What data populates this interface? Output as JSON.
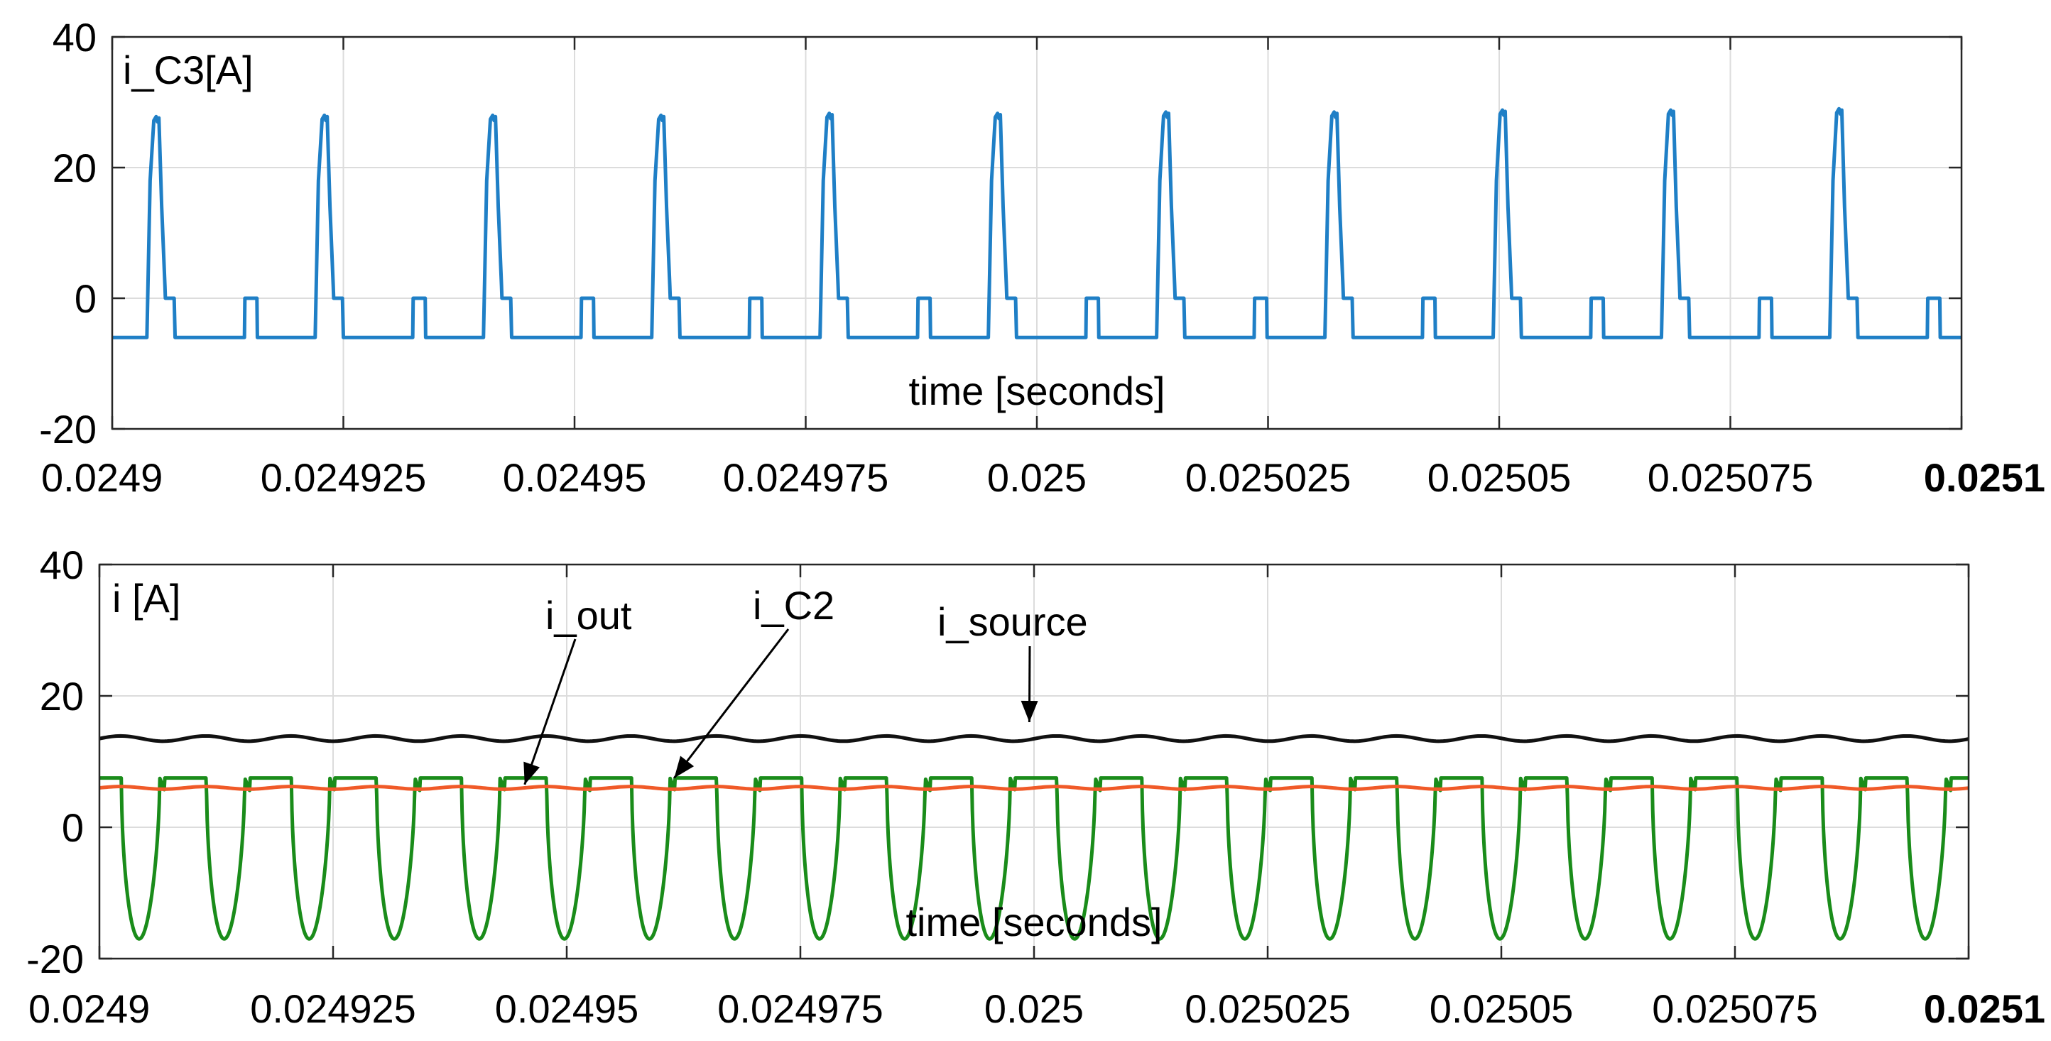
{
  "chart_data": [
    {
      "type": "line",
      "panel_label": "i_C3[A]",
      "xlabel": "time [seconds]",
      "xlim": [
        0.0249,
        0.0251
      ],
      "ylim": [
        -20,
        40
      ],
      "x_ticks": [
        "0.0249",
        "0.024925",
        "0.02495",
        "0.024975",
        "0.025",
        "0.025025",
        "0.02505",
        "0.025075",
        "0.0251"
      ],
      "y_ticks": [
        "40",
        "20",
        "0",
        "-20"
      ],
      "y_tick_values": [
        40,
        20,
        0,
        -20
      ],
      "grid": true,
      "pulse": {
        "period": 1.82e-05,
        "first_peak_time": 0.0249048,
        "peak_values": [
          27.8,
          28.0,
          28.0,
          28.0,
          28.3,
          28.3,
          28.5,
          28.5,
          28.8,
          28.8,
          29.0
        ],
        "baseline": -6,
        "zero_level": 0,
        "color": "#1f7fc6"
      },
      "series": [
        {
          "color": "#1f7fc6"
        }
      ]
    },
    {
      "type": "line",
      "panel_label": "i [A]",
      "xlabel": "time [seconds]",
      "xlim": [
        0.0249,
        0.0251
      ],
      "ylim": [
        -20,
        40
      ],
      "x_ticks": [
        "0.0249",
        "0.024925",
        "0.02495",
        "0.024975",
        "0.025",
        "0.025025",
        "0.02505",
        "0.025075",
        "0.0251"
      ],
      "y_ticks": [
        "40",
        "20",
        "0",
        "-20"
      ],
      "y_tick_values": [
        40,
        20,
        0,
        -20
      ],
      "grid": true,
      "series": [
        {
          "name": "i_source",
          "mean": 13.5,
          "ripple": 0.4,
          "color": "#111111"
        },
        {
          "name": "i_out",
          "mean": 6.0,
          "ripple": 0.2,
          "color": "#f05a28"
        },
        {
          "name": "i_C2",
          "high": 7.5,
          "low": -17,
          "period": 9.1e-06,
          "color": "#1a8c1a"
        }
      ],
      "annotations": [
        {
          "text": "i_out",
          "points_to_x": 0.0249455,
          "points_to_y": 6.5
        },
        {
          "text": "i_C2",
          "points_to_x": 0.0249615,
          "points_to_y": 7.5
        },
        {
          "text": "i_source",
          "points_to_x": 0.0249995,
          "points_to_y": 16.0
        }
      ]
    }
  ]
}
